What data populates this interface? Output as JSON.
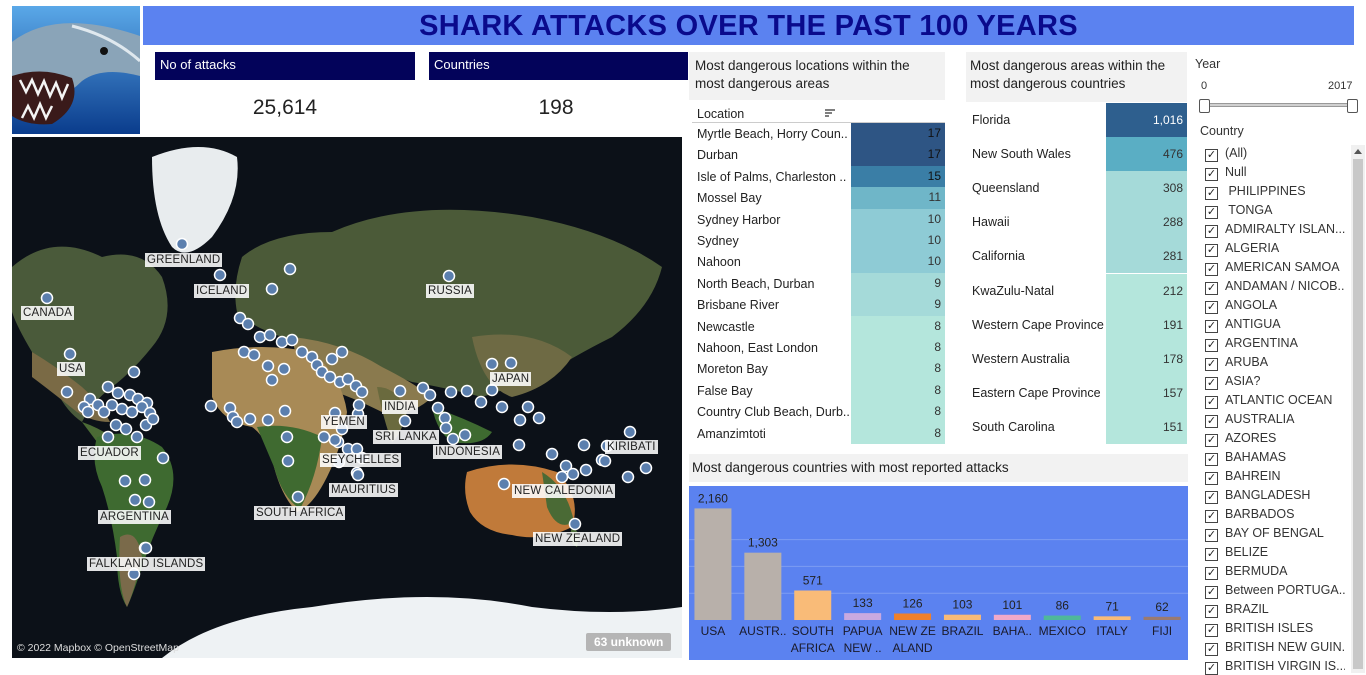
{
  "title": "SHARK ATTACKS OVER THE PAST 100 YEARS",
  "kpis": {
    "attacks_label": "No of attacks",
    "attacks_value": "25,614",
    "countries_label": "Countries",
    "countries_value": "198"
  },
  "map": {
    "labels": [
      "GREENLAND",
      "ICELAND",
      "RUSSIA",
      "CANADA",
      "USA",
      "JAPAN",
      "INDIA",
      "YEMEN",
      "SRI LANKA",
      "INDONESIA",
      "SEYCHELLES",
      "MAURITIUS",
      "ECUADOR",
      "KIRIBATI",
      "NEW CALEDONIA",
      "ARGENTINA",
      "SOUTH AFRICA",
      "NEW ZEALAND",
      "FALKLAND ISLANDS"
    ],
    "attribution": "© 2022 Mapbox © OpenStreetMap",
    "unknown_badge": "63 unknown"
  },
  "locations_table": {
    "title": "Most dangerous locations within the most dangerous areas",
    "column_header": "Location",
    "rows": [
      {
        "label": "Myrtle Beach, Horry Coun..",
        "value": "17"
      },
      {
        "label": "Durban",
        "value": "17"
      },
      {
        "label": "Isle of Palms, Charleston ..",
        "value": "15"
      },
      {
        "label": "Mossel Bay",
        "value": "11"
      },
      {
        "label": "Sydney Harbor",
        "value": "10"
      },
      {
        "label": "Sydney",
        "value": "10"
      },
      {
        "label": "Nahoon",
        "value": "10"
      },
      {
        "label": "North Beach, Durban",
        "value": "9"
      },
      {
        "label": "Brisbane River",
        "value": "9"
      },
      {
        "label": "Newcastle",
        "value": "8"
      },
      {
        "label": "Nahoon, East London",
        "value": "8"
      },
      {
        "label": "Moreton Bay",
        "value": "8"
      },
      {
        "label": "False Bay",
        "value": "8"
      },
      {
        "label": "Country Club Beach, Durb..",
        "value": "8"
      },
      {
        "label": "Amanzimtoti",
        "value": "8"
      }
    ]
  },
  "areas_table": {
    "title": "Most dangerous  areas within the most dangerous countries",
    "rows": [
      {
        "label": "Florida",
        "value": "1,016"
      },
      {
        "label": "New South Wales",
        "value": "476"
      },
      {
        "label": "Queensland",
        "value": "308"
      },
      {
        "label": "Hawaii",
        "value": "288"
      },
      {
        "label": "California",
        "value": "281"
      },
      {
        "label": "KwaZulu-Natal",
        "value": "212"
      },
      {
        "label": "Western Cape Province",
        "value": "191"
      },
      {
        "label": "Western Australia",
        "value": "178"
      },
      {
        "label": "Eastern Cape Province",
        "value": "157"
      },
      {
        "label": "South Carolina",
        "value": "151"
      }
    ]
  },
  "chart_data": {
    "type": "bar",
    "title": "Most dangerous countries with most reported attacks",
    "categories": [
      "USA",
      "AUSTR..",
      "SOUTH AFRICA",
      "PAPUA NEW ..",
      "NEW ZE ALAND",
      "BRAZIL",
      "BAHA..",
      "MEXICO",
      "ITALY",
      "FIJI"
    ],
    "category_lines": [
      [
        "USA"
      ],
      [
        "AUSTR.."
      ],
      [
        "SOUTH",
        "AFRICA"
      ],
      [
        "PAPUA",
        "NEW .."
      ],
      [
        "NEW ZE",
        "ALAND"
      ],
      [
        "BRAZIL"
      ],
      [
        "BAHA.."
      ],
      [
        "MEXICO"
      ],
      [
        "ITALY"
      ],
      [
        "FIJI"
      ]
    ],
    "values": [
      2160,
      1303,
      571,
      133,
      126,
      103,
      101,
      86,
      71,
      62
    ],
    "value_labels": [
      "2,160",
      "1,303",
      "571",
      "133",
      "126",
      "103",
      "101",
      "86",
      "71",
      "62"
    ],
    "colors": [
      "#b8b0aa",
      "#b8b0aa",
      "#f9bb78",
      "#c9a9e0",
      "#f0802b",
      "#f9bb78",
      "#f0a9c9",
      "#4fb89a",
      "#f9bb78",
      "#9a7a70"
    ],
    "ylim": [
      0,
      2400
    ],
    "background": "#5b82f0",
    "grid": true
  },
  "filters": {
    "year_label": "Year",
    "year_min": "0",
    "year_max": "2017",
    "country_label": "Country",
    "country_items": [
      "(All)",
      "Null",
      " PHILIPPINES",
      " TONGA",
      "ADMIRALTY ISLAN...",
      "ALGERIA",
      "AMERICAN SAMOA",
      "ANDAMAN / NICOB...",
      "ANGOLA",
      "ANTIGUA",
      "ARGENTINA",
      "ARUBA",
      "ASIA?",
      "ATLANTIC OCEAN",
      "AUSTRALIA",
      "AZORES",
      "BAHAMAS",
      "BAHREIN",
      "BANGLADESH",
      "BARBADOS",
      "BAY OF BENGAL",
      "BELIZE",
      "BERMUDA",
      "Between PORTUGA...",
      "BRAZIL",
      "BRITISH ISLES",
      "BRITISH NEW GUIN...",
      "BRITISH VIRGIN IS..."
    ]
  },
  "colors": {
    "title_band": "#5b82f0",
    "title_text": "#0a0a8c",
    "kpi_header": "#03035a",
    "heat_dark": "#2b5587",
    "heat_light": "#b4e6dc"
  }
}
